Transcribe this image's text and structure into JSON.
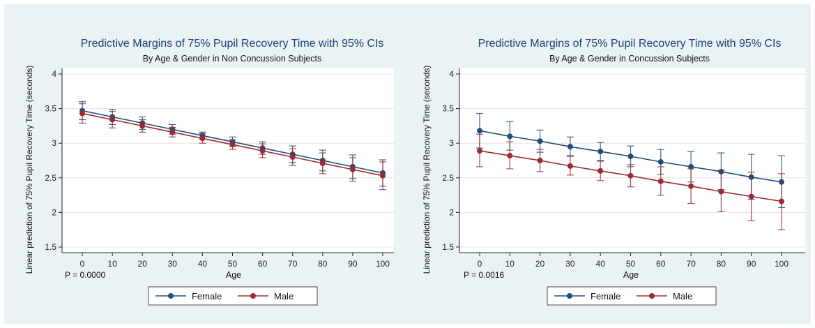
{
  "colors": {
    "panel_bg": "#eaf2f3",
    "female": "#1f4e79",
    "male": "#9e2a2f",
    "title": "#1a3f7a",
    "grid": "#e4e4e4"
  },
  "chart_data": [
    {
      "type": "line",
      "title": "Predictive Margins of 75% Pupil Recovery Time with 95% CIs",
      "subtitle": "By Age & Gender in Non Concussion Subjects",
      "xlabel": "Age",
      "ylabel": "Linear prediction of 75% Pupil Recovery Time (seconds)",
      "annotation": "P = 0.0000",
      "x": [
        0,
        10,
        20,
        30,
        40,
        50,
        60,
        70,
        80,
        90,
        100
      ],
      "xticks": [
        "0",
        "10",
        "20",
        "30",
        "40",
        "50",
        "60",
        "70",
        "80",
        "90",
        "100"
      ],
      "yticks": [
        "1.5",
        "2",
        "2.5",
        "3",
        "3.5",
        "4"
      ],
      "ylim": [
        1.5,
        4
      ],
      "grid": true,
      "legend_position": "bottom",
      "series": [
        {
          "name": "Female",
          "values": [
            3.47,
            3.38,
            3.29,
            3.2,
            3.11,
            3.02,
            2.93,
            2.84,
            2.75,
            2.66,
            2.57
          ],
          "ci_low": [
            3.34,
            3.27,
            3.2,
            3.13,
            3.06,
            2.95,
            2.84,
            2.72,
            2.6,
            2.49,
            2.38
          ],
          "ci_high": [
            3.6,
            3.49,
            3.38,
            3.27,
            3.16,
            3.09,
            3.02,
            2.96,
            2.9,
            2.83,
            2.76
          ]
        },
        {
          "name": "Male",
          "values": [
            3.43,
            3.34,
            3.25,
            3.16,
            3.07,
            2.98,
            2.89,
            2.8,
            2.71,
            2.62,
            2.53
          ],
          "ci_low": [
            3.29,
            3.22,
            3.16,
            3.09,
            3.0,
            2.91,
            2.79,
            2.68,
            2.56,
            2.45,
            2.33
          ],
          "ci_high": [
            3.57,
            3.46,
            3.34,
            3.23,
            3.14,
            3.05,
            2.99,
            2.92,
            2.86,
            2.79,
            2.73
          ]
        }
      ]
    },
    {
      "type": "line",
      "title": "Predictive Margins of 75% Pupil Recovery Time with 95% CIs",
      "subtitle": "By Age & Gender in Concussion Subjects",
      "xlabel": "Age",
      "ylabel": "Linear prediction of 75% Pupil Recovery Time (seconds)",
      "annotation": "P = 0.0016",
      "x": [
        0,
        10,
        20,
        30,
        40,
        50,
        60,
        70,
        80,
        90,
        100
      ],
      "xticks": [
        "0",
        "10",
        "20",
        "30",
        "40",
        "50",
        "60",
        "70",
        "80",
        "90",
        "100"
      ],
      "yticks": [
        "1.5",
        "2",
        "2.5",
        "3",
        "3.5",
        "4"
      ],
      "ylim": [
        1.5,
        4
      ],
      "grid": true,
      "legend_position": "bottom",
      "series": [
        {
          "name": "Female",
          "values": [
            3.18,
            3.1,
            3.03,
            2.95,
            2.88,
            2.81,
            2.73,
            2.66,
            2.59,
            2.51,
            2.44
          ],
          "ci_low": [
            2.93,
            2.9,
            2.87,
            2.82,
            2.75,
            2.66,
            2.55,
            2.44,
            2.33,
            2.19,
            2.07
          ],
          "ci_high": [
            3.43,
            3.31,
            3.19,
            3.09,
            3.01,
            2.96,
            2.91,
            2.88,
            2.86,
            2.84,
            2.82
          ]
        },
        {
          "name": "Male",
          "values": [
            2.89,
            2.82,
            2.75,
            2.67,
            2.6,
            2.53,
            2.45,
            2.38,
            2.3,
            2.23,
            2.16
          ],
          "ci_low": [
            2.66,
            2.63,
            2.59,
            2.54,
            2.46,
            2.37,
            2.25,
            2.13,
            2.01,
            1.88,
            1.75
          ],
          "ci_high": [
            3.13,
            3.02,
            2.91,
            2.81,
            2.74,
            2.69,
            2.66,
            2.63,
            2.61,
            2.58,
            2.56
          ]
        }
      ]
    }
  ]
}
